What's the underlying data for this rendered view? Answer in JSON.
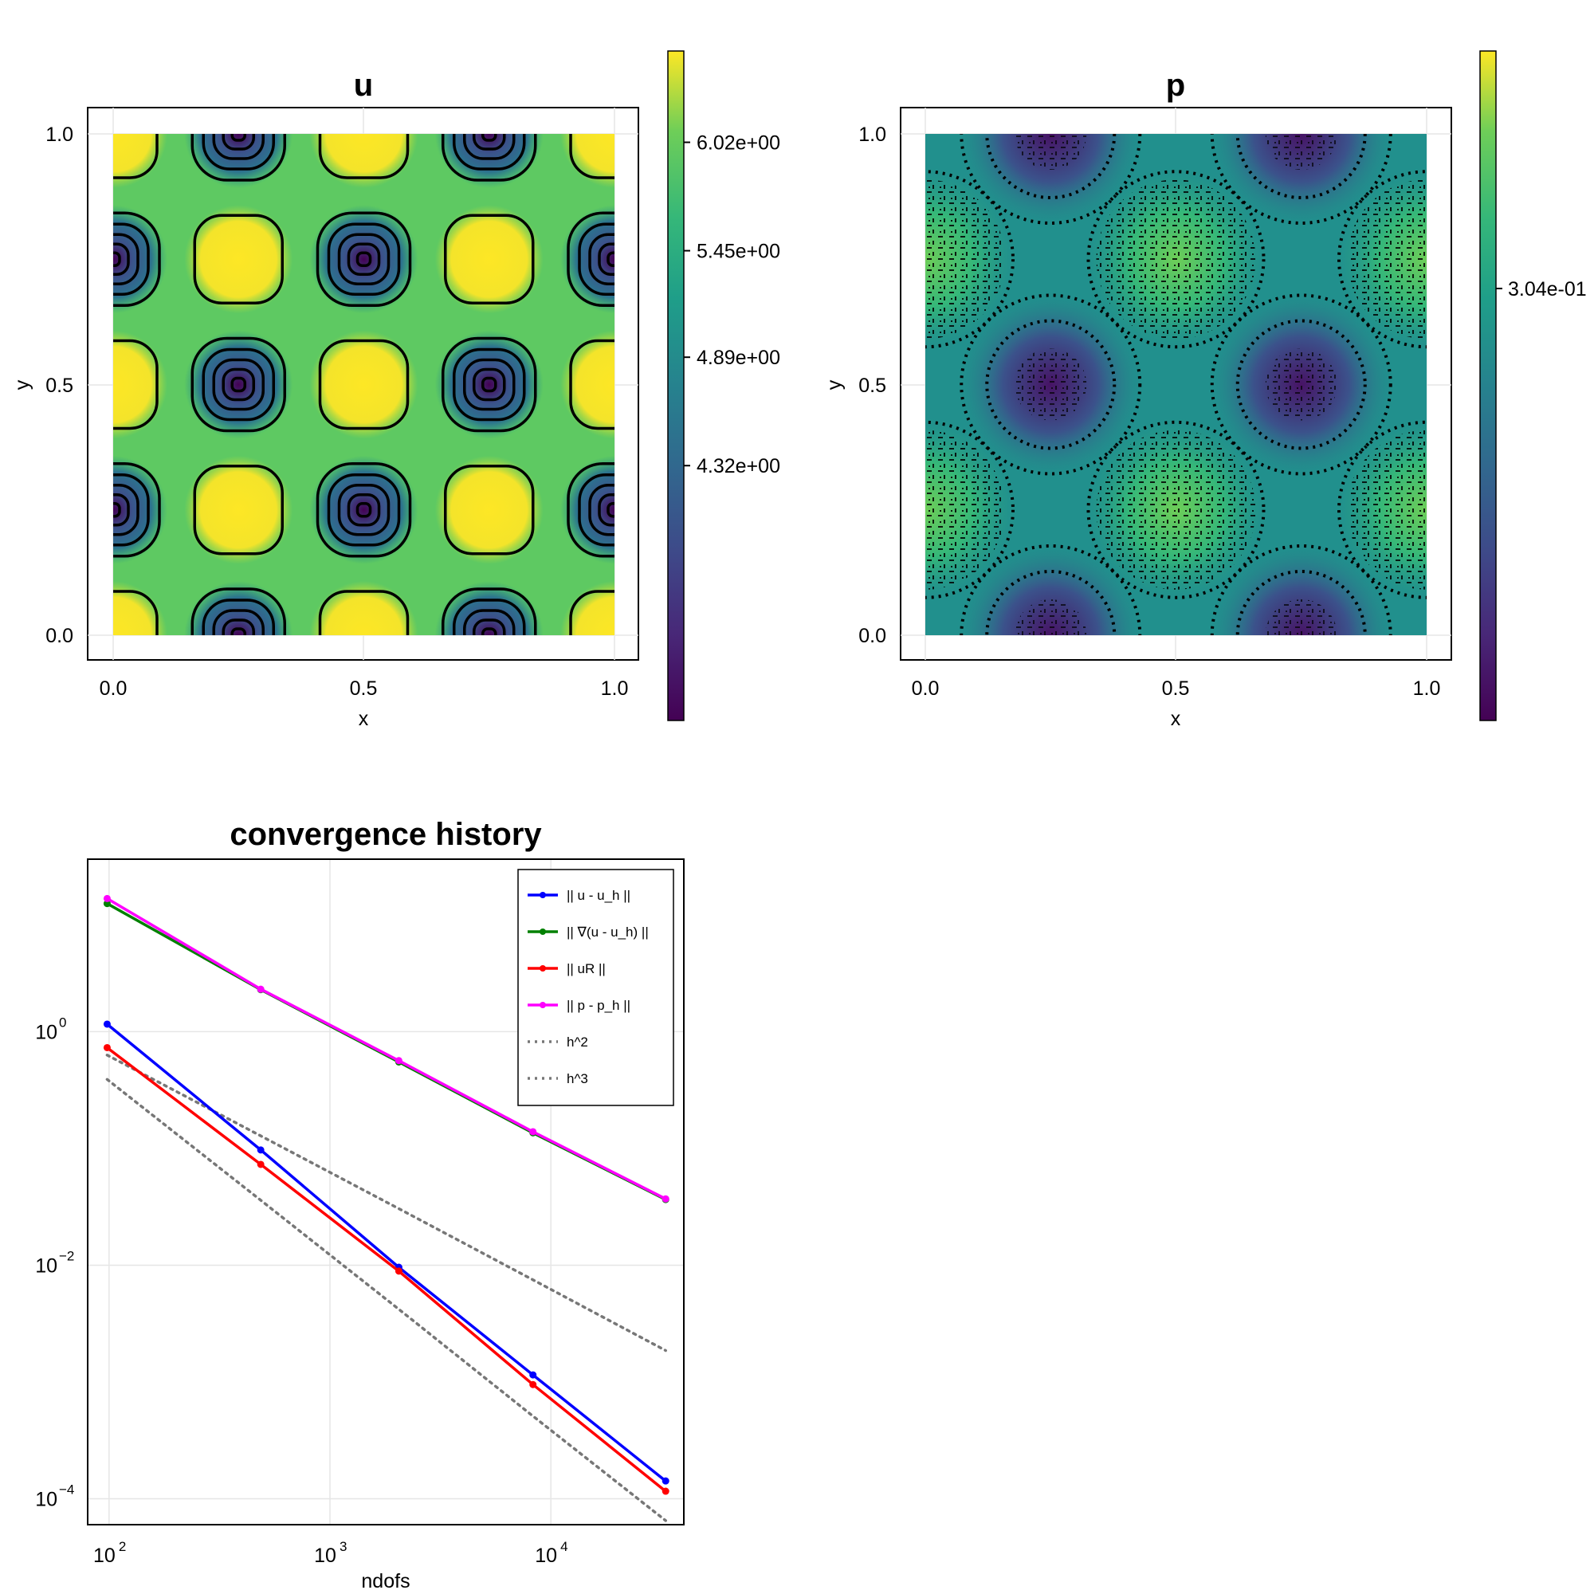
{
  "chart_data": [
    {
      "type": "heatmap",
      "title": "u",
      "xlabel": "x",
      "ylabel": "y",
      "xlim": [
        0,
        1
      ],
      "ylim": [
        0,
        1
      ],
      "xticks": [
        "0.0",
        "0.5",
        "1.0"
      ],
      "yticks": [
        "0.0",
        "0.5",
        "1.0"
      ],
      "colormap": "viridis",
      "colorbar_range": [
        2.98,
        6.5
      ],
      "colorbar_ticks": [
        {
          "value": 6.02,
          "label": "6.02e+00"
        },
        {
          "value": 5.45,
          "label": "5.45e+00"
        },
        {
          "value": 4.89,
          "label": "4.89e+00"
        },
        {
          "value": 4.32,
          "label": "4.32e+00"
        }
      ],
      "contours": "black contour lines",
      "pattern_note": "periodic cells; maxima near (0.25,0.25),(0.75,0.25),(0.5,0.5),(0.25,0.75),(0.75,0.75); minima near (0.5,0.25),(0.25,0.5),(0.75,0.5),(0.5,0.75) and on edges"
    },
    {
      "type": "heatmap",
      "title": "p",
      "xlabel": "x",
      "ylabel": "y",
      "xlim": [
        0,
        1
      ],
      "ylim": [
        0,
        1
      ],
      "xticks": [
        "0.0",
        "0.5",
        "1.0"
      ],
      "yticks": [
        "0.0",
        "0.5",
        "1.0"
      ],
      "colormap": "viridis",
      "colorbar_ticks": [
        {
          "value": 0.304,
          "label": "3.04e-01"
        }
      ],
      "contours": "black dotted noisy contour lines"
    },
    {
      "type": "line",
      "title": "convergence history",
      "xlabel": "ndofs",
      "ylabel": "",
      "xscale": "log",
      "yscale": "log",
      "xlim": [
        80,
        40000
      ],
      "ylim": [
        6e-05,
        30
      ],
      "xticks": [
        {
          "value": 100,
          "base": "10",
          "exp": "2"
        },
        {
          "value": 1000,
          "base": "10",
          "exp": "3"
        },
        {
          "value": 10000,
          "base": "10",
          "exp": "4"
        }
      ],
      "yticks": [
        {
          "value": 1,
          "base": "10",
          "exp": "0"
        },
        {
          "value": 0.01,
          "base": "10",
          "exp": "−2"
        },
        {
          "value": 0.0001,
          "base": "10",
          "exp": "−4"
        }
      ],
      "grid": true,
      "legend_position": "top-right",
      "x": [
        98,
        486,
        2050,
        8300,
        33100
      ],
      "series": [
        {
          "name": "|| u - u_h ||",
          "color": "#0000ff",
          "style": "solid-markers",
          "values": [
            1.16,
            0.097,
            0.0096,
            0.00115,
            0.000142
          ]
        },
        {
          "name": "|| ∇(u - u_h) ||",
          "color": "#008000",
          "style": "solid-markers",
          "values": [
            12.5,
            2.29,
            0.55,
            0.136,
            0.0365
          ]
        },
        {
          "name": "|| uR ||",
          "color": "#ff0000",
          "style": "solid-markers",
          "values": [
            0.73,
            0.073,
            0.0089,
            0.00095,
            0.000116
          ]
        },
        {
          "name": "|| p - p_h ||",
          "color": "#ff00ff",
          "style": "solid-markers",
          "values": [
            13.8,
            2.31,
            0.565,
            0.139,
            0.037
          ]
        },
        {
          "name": "h^2",
          "color": "#777777",
          "style": "dotted",
          "values": [
            0.63,
            0.128,
            0.0305,
            0.0075,
            0.00186
          ]
        },
        {
          "name": "h^3",
          "color": "#777777",
          "style": "dotted",
          "values": [
            0.39,
            0.036,
            0.0042,
            0.00051,
            6.5e-05
          ]
        }
      ]
    }
  ]
}
